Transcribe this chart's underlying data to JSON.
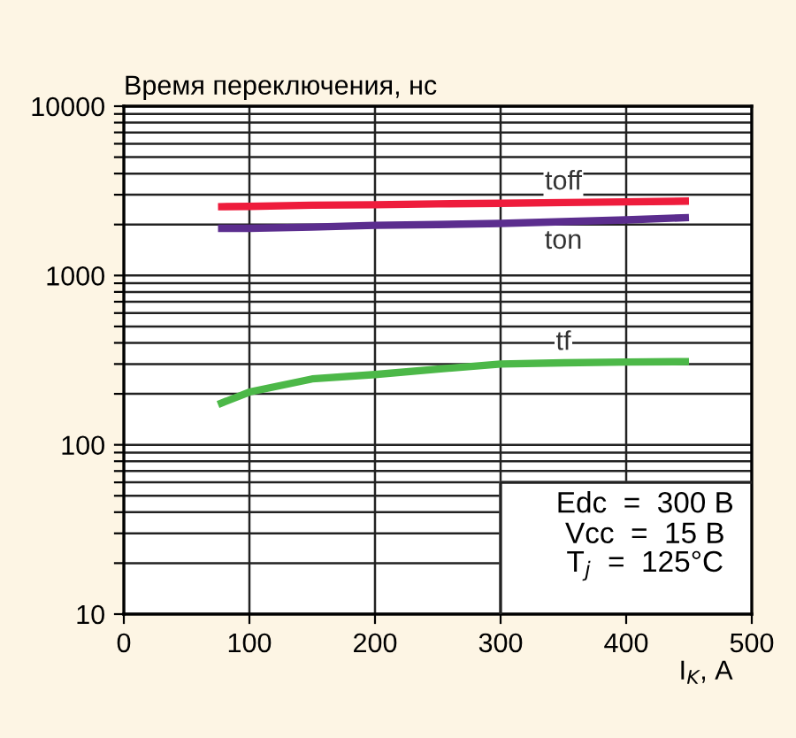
{
  "chart_data": {
    "type": "line",
    "ylabel": "Время переключения, нс",
    "xlabel": "I$_{K}$, A",
    "x": [
      75,
      100,
      150,
      200,
      250,
      300,
      350,
      400,
      450
    ],
    "series": [
      {
        "name": "toff",
        "color": "#ee1c3c",
        "values": [
          2550,
          2560,
          2600,
          2620,
          2650,
          2670,
          2700,
          2720,
          2750
        ]
      },
      {
        "name": "ton",
        "color": "#5b2d8e",
        "values": [
          1900,
          1900,
          1930,
          1980,
          2000,
          2030,
          2080,
          2130,
          2200
        ]
      },
      {
        "name": "tf",
        "color": "#4cb848",
        "values": [
          173,
          205,
          245,
          260,
          280,
          300,
          305,
          308,
          310
        ]
      }
    ],
    "log": "y",
    "xlim": [
      0,
      500
    ],
    "xticks": [
      0,
      100,
      200,
      300,
      400,
      500
    ],
    "ylim": [
      10,
      10000
    ],
    "yticks": [
      10,
      {
        "value": 20,
        "label": null
      },
      {
        "value": 30,
        "label": null
      },
      {
        "value": 40,
        "label": null
      },
      {
        "value": 50,
        "label": null
      },
      {
        "value": 60,
        "label": null
      },
      {
        "value": 70,
        "label": null
      },
      {
        "value": 80,
        "label": null
      },
      {
        "value": 90,
        "label": null
      },
      100,
      {
        "value": 200,
        "label": null
      },
      {
        "value": 300,
        "label": null
      },
      {
        "value": 400,
        "label": null
      },
      {
        "value": 500,
        "label": null
      },
      {
        "value": 600,
        "label": null
      },
      {
        "value": 700,
        "label": null
      },
      {
        "value": 800,
        "label": null
      },
      {
        "value": 900,
        "label": null
      },
      1000,
      {
        "value": 2000,
        "label": null
      },
      {
        "value": 3000,
        "label": null
      },
      {
        "value": 4000,
        "label": null
      },
      {
        "value": 5000,
        "label": null
      },
      {
        "value": 6000,
        "label": null
      },
      {
        "value": 7000,
        "label": null
      },
      {
        "value": 8000,
        "label": null
      },
      {
        "value": 9000,
        "label": null
      },
      10000
    ],
    "grid": true,
    "legend": false,
    "marker": "none",
    "line_style": "solid",
    "annotations": [
      "Edc  =  300 B",
      "Vcc  =  15 B",
      "T$_{j}$  =  125°C"
    ]
  }
}
